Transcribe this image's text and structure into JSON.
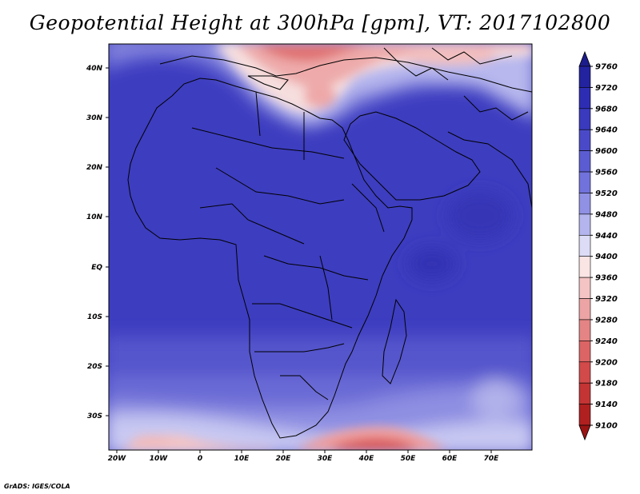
{
  "title": "Geopotential Height at 300hPa [gpm], VT: 2017102800",
  "credit": "GrADS: IGES/COLA",
  "map": {
    "lat_labels": [
      "40N",
      "30N",
      "20N",
      "10N",
      "EQ",
      "10S",
      "20S",
      "30S"
    ],
    "lon_labels": [
      "20W",
      "10W",
      "0",
      "10E",
      "20E",
      "30E",
      "40E",
      "50E",
      "60E",
      "70E"
    ]
  },
  "colorbar": {
    "labels": [
      "9760",
      "9720",
      "9680",
      "9640",
      "9600",
      "9560",
      "9520",
      "9480",
      "9440",
      "9400",
      "9360",
      "9320",
      "9280",
      "9240",
      "9200",
      "9180",
      "9140",
      "9100"
    ],
    "colors": [
      "#1c1c8c",
      "#2323a0",
      "#2d2db4",
      "#3a3abe",
      "#4a4ac8",
      "#5c5cd2",
      "#7272dc",
      "#9090e4",
      "#b4b4ee",
      "#dcdcf6",
      "#fae4e4",
      "#f4c4c4",
      "#eca4a4",
      "#e48484",
      "#dc6464",
      "#d24a4a",
      "#c43434",
      "#b02020",
      "#9a1414"
    ]
  }
}
